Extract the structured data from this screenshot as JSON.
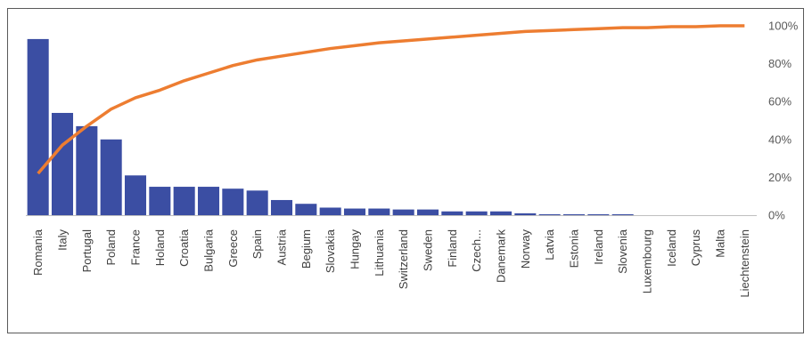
{
  "chart_data": {
    "type": "bar",
    "title": "",
    "xlabel": "",
    "ylabel": "",
    "categories": [
      "Romania",
      "Italy",
      "Portugal",
      "Poland",
      "France",
      "Holand",
      "Croatia",
      "Bulgaria",
      "Greece",
      "Spain",
      "Austria",
      "Begium",
      "Slovakia",
      "Hungay",
      "Lithuania",
      "Switzerland",
      "Sweden",
      "Finland",
      "Czech...",
      "Danemark",
      "Norway",
      "Latvia",
      "Estonia",
      "Ireland",
      "Slovenia",
      "Luxembourg",
      "Iceland",
      "Cyprus",
      "Malta",
      "Liechtenstein"
    ],
    "series": [
      {
        "type": "bar",
        "color": "#3b4ea3",
        "values": [
          93,
          54,
          47,
          40,
          21,
          15,
          15,
          15,
          14,
          13,
          8,
          6,
          4,
          3.5,
          3.5,
          3,
          3,
          2,
          2,
          2,
          1,
          0.5,
          0.5,
          0.5,
          0.5,
          0,
          0,
          0,
          0,
          0
        ]
      },
      {
        "type": "line",
        "color": "#ed7d31",
        "values": [
          22,
          37,
          47,
          56,
          62,
          66,
          71,
          75,
          79,
          82,
          84,
          86,
          88,
          89.5,
          91,
          92,
          93,
          94,
          95,
          96,
          97,
          97.5,
          98,
          98.5,
          99,
          99,
          99.5,
          99.5,
          100,
          100
        ]
      }
    ],
    "ylim_left": [
      0,
      100
    ],
    "y2lim": [
      0,
      100
    ],
    "y2_ticks": [
      "0%",
      "20%",
      "40%",
      "60%",
      "80%",
      "100%"
    ],
    "grid": false,
    "legend": "none"
  }
}
